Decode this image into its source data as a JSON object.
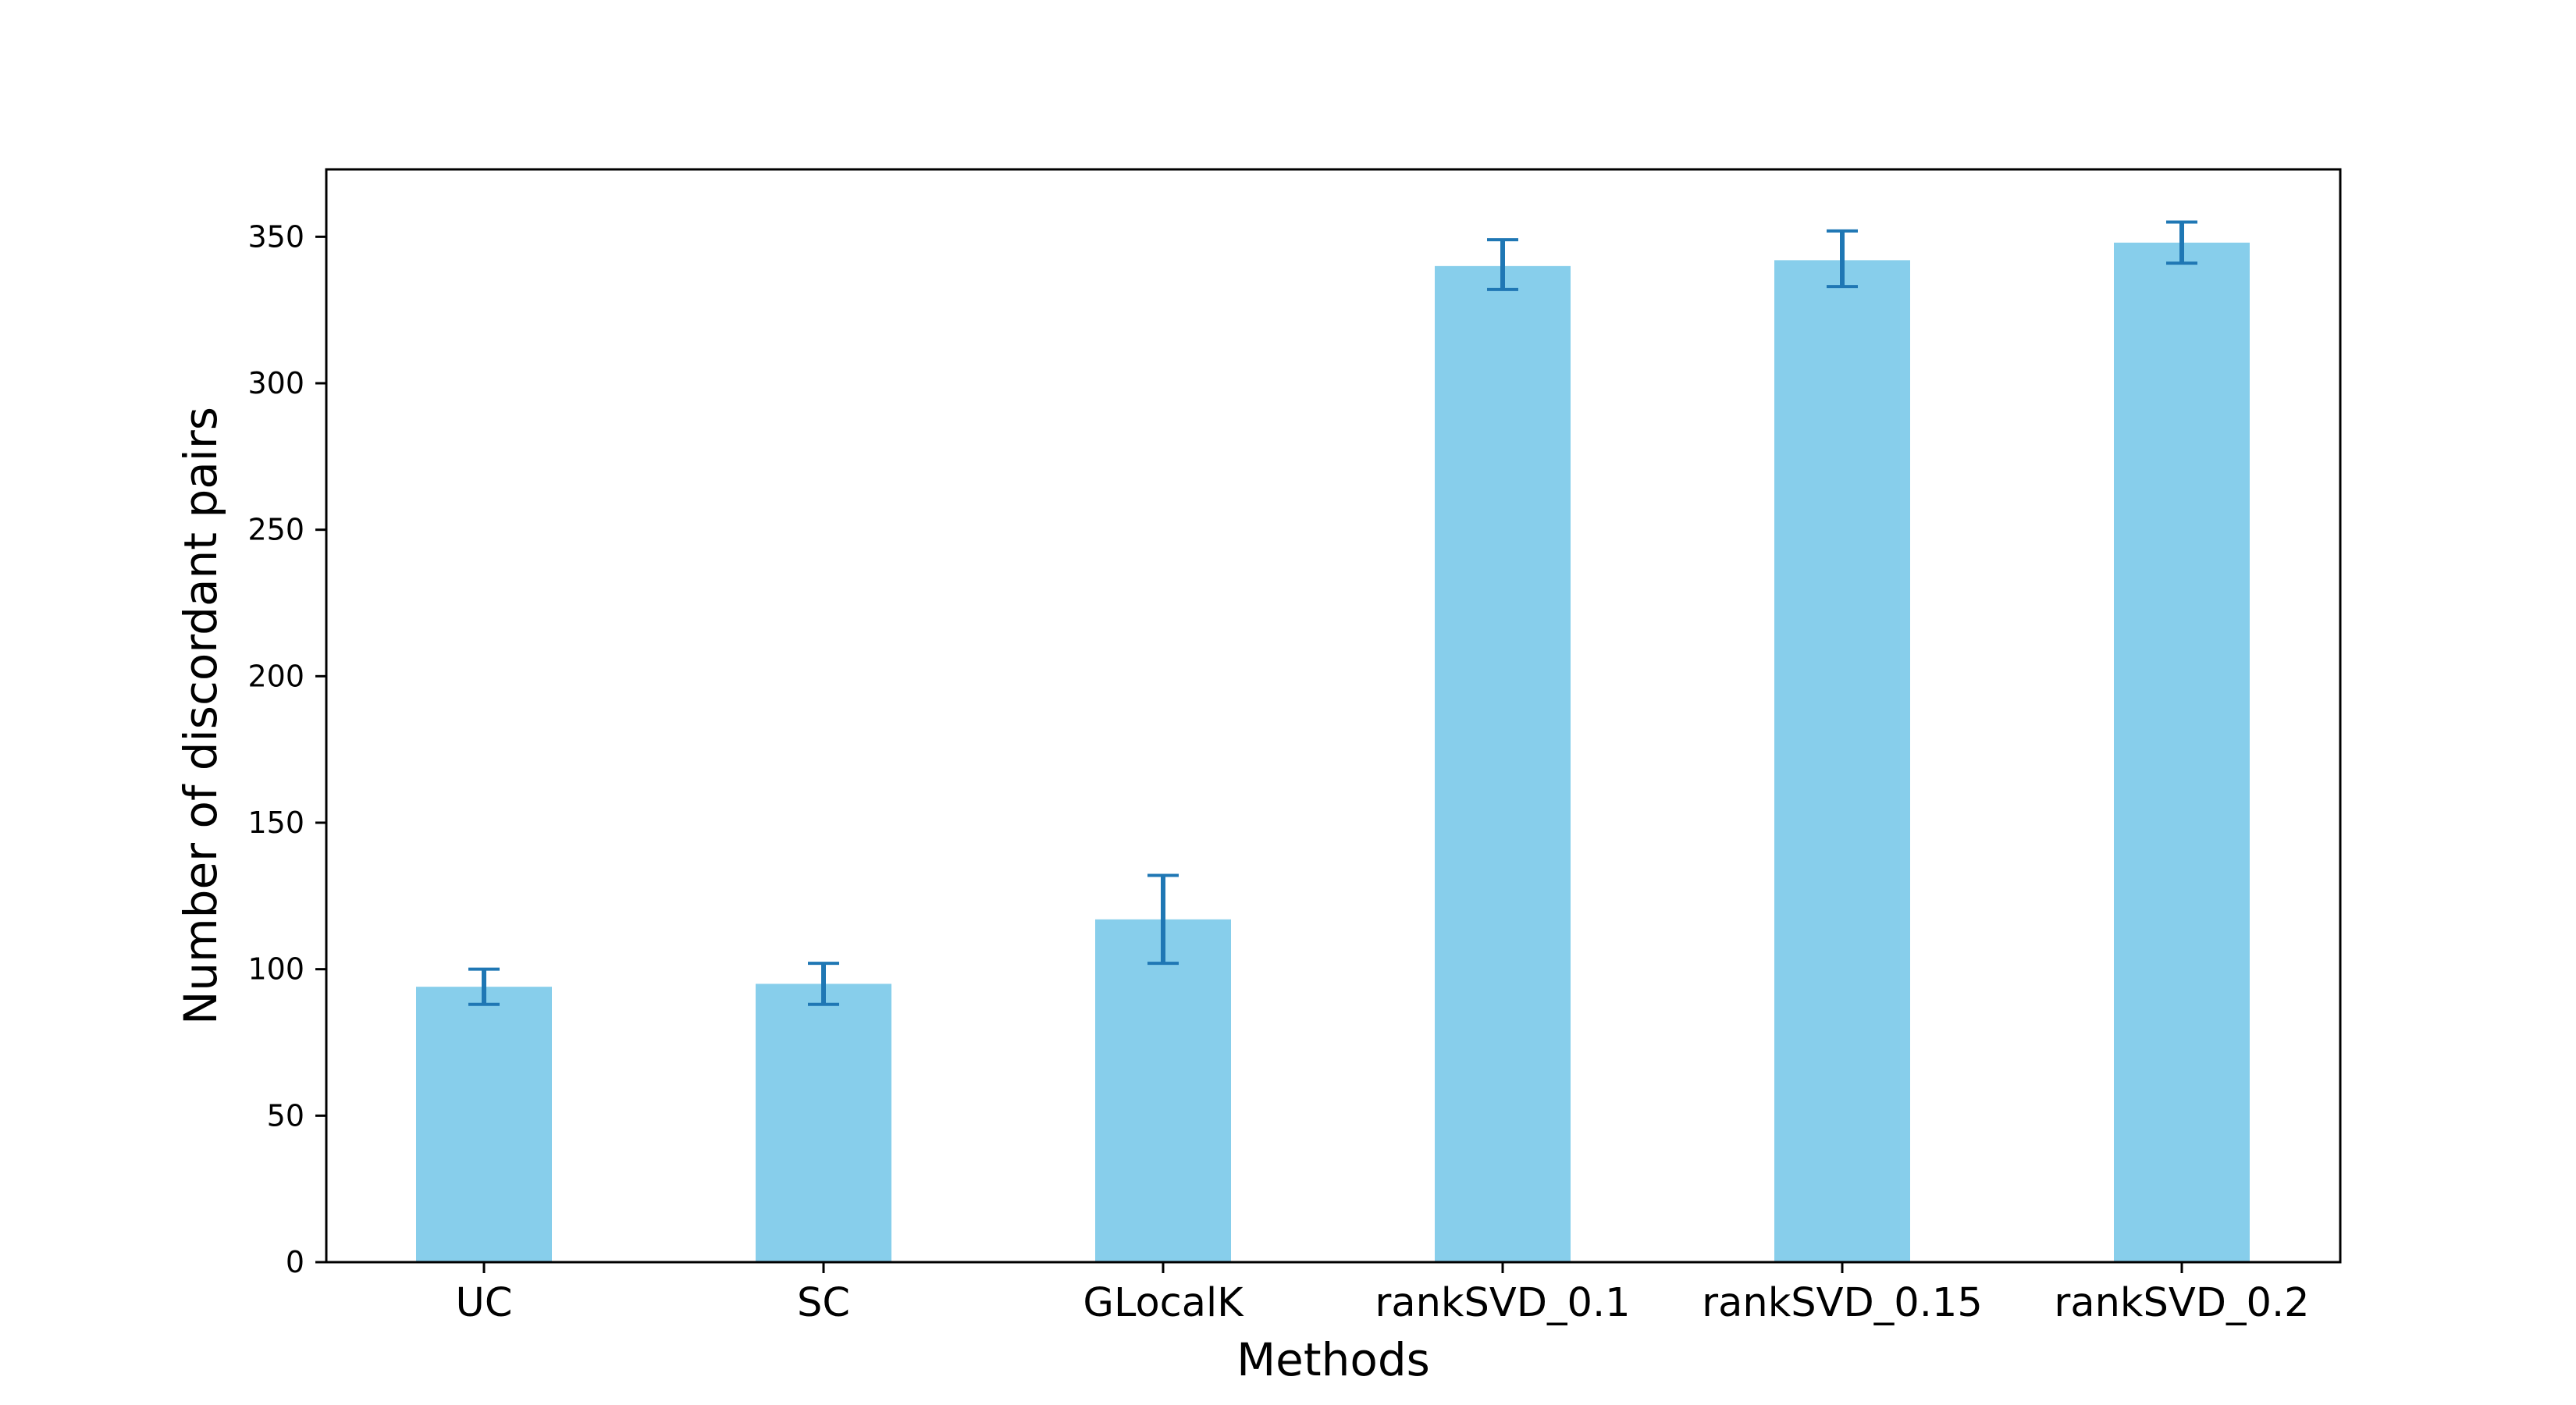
{
  "chart_data": {
    "type": "bar",
    "title": "",
    "xlabel": "Methods",
    "ylabel": "Number of discordant pairs",
    "categories": [
      "UC",
      "SC",
      "GLocalK",
      "rankSVD_0.1",
      "rankSVD_0.15",
      "rankSVD_0.2"
    ],
    "values": [
      94,
      95,
      117,
      340,
      342,
      348
    ],
    "error_low": [
      88,
      88,
      102,
      332,
      333,
      341
    ],
    "error_high": [
      100,
      102,
      132,
      349,
      352,
      355
    ],
    "ylim": [
      0,
      373
    ],
    "yticks": [
      0,
      50,
      100,
      150,
      200,
      250,
      300,
      350
    ],
    "grid": false,
    "bar_color": "#87CEEB",
    "error_color": "#1F77B4"
  }
}
